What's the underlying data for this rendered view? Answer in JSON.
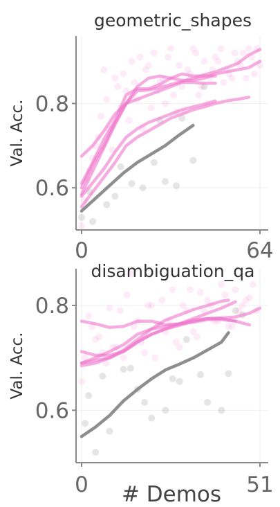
{
  "figure": {
    "xlabel": "# Demos"
  },
  "chart_data": [
    {
      "type": "line",
      "title": "geometric_shapes",
      "xlabel": "# Demos",
      "ylabel": "Val. Acc.",
      "xlim": [
        0,
        64
      ],
      "ylim": [
        0.5,
        0.96
      ],
      "xticks": [
        0,
        64
      ],
      "xtick_labels": [
        "0",
        "64"
      ],
      "yticks": [
        0.6,
        0.8
      ],
      "ytick_labels": [
        "0.6",
        "0.8"
      ],
      "grid": true,
      "colors": {
        "pink": "#ee77cc",
        "gray": "#888888"
      },
      "series": [
        {
          "color": "gray",
          "x": [
            0,
            5,
            10,
            15,
            20,
            25,
            30,
            35,
            40
          ],
          "y": [
            0.545,
            0.575,
            0.605,
            0.635,
            0.66,
            0.68,
            0.7,
            0.725,
            0.748
          ]
        },
        {
          "color": "pink",
          "x": [
            0,
            4,
            8,
            12,
            16,
            20,
            24,
            28,
            32,
            36,
            40,
            44,
            48
          ],
          "y": [
            0.675,
            0.7,
            0.735,
            0.775,
            0.8,
            0.81,
            0.82,
            0.83,
            0.84,
            0.85,
            0.85,
            0.848,
            0.848
          ]
        },
        {
          "color": "pink",
          "x": [
            0,
            4,
            8,
            12,
            16,
            20,
            24,
            28,
            32,
            36,
            40,
            44,
            48
          ],
          "y": [
            0.61,
            0.66,
            0.715,
            0.76,
            0.82,
            0.835,
            0.835,
            0.845,
            0.86,
            0.87,
            0.865,
            0.865,
            0.865
          ]
        },
        {
          "color": "pink",
          "x": [
            0,
            4,
            8,
            12,
            16,
            20,
            24,
            28,
            32,
            36,
            40,
            44,
            48,
            52,
            56,
            60,
            64
          ],
          "y": [
            0.6,
            0.655,
            0.7,
            0.755,
            0.8,
            0.83,
            0.832,
            0.838,
            0.845,
            0.852,
            0.86,
            0.868,
            0.875,
            0.885,
            0.895,
            0.915,
            0.928
          ]
        },
        {
          "color": "pink",
          "x": [
            0,
            4,
            8,
            12,
            16,
            20,
            24,
            28,
            32,
            36,
            40,
            44,
            48,
            52,
            56,
            60,
            64
          ],
          "y": [
            0.585,
            0.64,
            0.695,
            0.75,
            0.8,
            0.84,
            0.86,
            0.865,
            0.86,
            0.855,
            0.855,
            0.86,
            0.87,
            0.875,
            0.88,
            0.885,
            0.9
          ]
        },
        {
          "color": "pink",
          "x": [
            0,
            4,
            8,
            12,
            16,
            20,
            24,
            28,
            32,
            36,
            40,
            44,
            48
          ],
          "y": [
            0.58,
            0.612,
            0.645,
            0.685,
            0.72,
            0.74,
            0.755,
            0.765,
            0.775,
            0.785,
            0.792,
            0.798,
            0.806
          ]
        },
        {
          "color": "pink",
          "x": [
            0,
            4,
            8,
            12,
            16,
            20,
            24,
            28,
            32,
            36,
            40,
            44,
            48,
            52,
            56,
            60
          ],
          "y": [
            0.555,
            0.59,
            0.625,
            0.66,
            0.7,
            0.72,
            0.735,
            0.75,
            0.765,
            0.775,
            0.785,
            0.792,
            0.8,
            0.806,
            0.81,
            0.815
          ]
        }
      ],
      "scatter": [
        {
          "color": "gray",
          "x": [
            0,
            4,
            9,
            14,
            18,
            22,
            26,
            30,
            36,
            40,
            44,
            3,
            12,
            28,
            34
          ],
          "y": [
            0.53,
            0.52,
            0.56,
            0.65,
            0.61,
            0.6,
            0.66,
            0.615,
            0.765,
            0.665,
            0.84,
            0.59,
            0.58,
            0.76,
            0.605
          ]
        },
        {
          "color": "pink",
          "x": [
            0,
            2,
            4,
            6,
            8,
            10,
            12,
            14,
            16,
            18,
            20,
            22,
            24,
            26,
            28,
            30,
            32,
            34,
            36,
            38,
            40,
            42,
            44,
            46,
            48,
            50,
            52,
            54,
            56,
            58,
            60,
            62,
            64,
            1,
            3,
            5,
            7,
            9,
            11,
            13,
            15,
            17,
            19,
            21,
            23,
            25,
            27,
            29,
            31,
            33,
            35,
            37,
            39,
            41,
            43,
            45,
            47,
            49,
            51,
            53,
            55,
            57,
            59,
            61,
            63
          ],
          "y": [
            0.51,
            0.62,
            0.67,
            0.72,
            0.88,
            0.74,
            0.86,
            0.79,
            0.83,
            0.9,
            0.81,
            0.74,
            0.89,
            0.92,
            0.85,
            0.8,
            0.93,
            0.78,
            0.84,
            0.88,
            0.93,
            0.82,
            0.9,
            0.86,
            0.91,
            0.93,
            0.88,
            0.86,
            0.9,
            0.92,
            0.93,
            0.87,
            0.89,
            0.57,
            0.64,
            0.7,
            0.77,
            0.81,
            0.69,
            0.84,
            0.87,
            0.76,
            0.85,
            0.91,
            0.88,
            0.79,
            0.83,
            0.86,
            0.91,
            0.82,
            0.89,
            0.78,
            0.87,
            0.92,
            0.84,
            0.8,
            0.88,
            0.9,
            0.85,
            0.87,
            0.92,
            0.89,
            0.86,
            0.91,
            0.93
          ]
        }
      ]
    },
    {
      "type": "line",
      "title": "disambiguation_qa",
      "xlabel": "# Demos",
      "ylabel": "Val. Acc.",
      "xlim": [
        0,
        51
      ],
      "ylim": [
        0.5,
        0.87
      ],
      "xticks": [
        0,
        51
      ],
      "xtick_labels": [
        "0",
        "51"
      ],
      "yticks": [
        0.6,
        0.8
      ],
      "ytick_labels": [
        "0.6",
        "0.8"
      ],
      "grid": true,
      "colors": {
        "pink": "#ee77cc",
        "gray": "#888888"
      },
      "series": [
        {
          "color": "gray",
          "x": [
            0,
            4,
            8,
            12,
            16,
            20,
            24,
            28,
            32,
            36,
            40,
            42
          ],
          "y": [
            0.55,
            0.568,
            0.59,
            0.618,
            0.64,
            0.66,
            0.677,
            0.688,
            0.7,
            0.715,
            0.73,
            0.748
          ]
        },
        {
          "color": "pink",
          "x": [
            0,
            4,
            8,
            12,
            16,
            20,
            24,
            28,
            32,
            36,
            40,
            44
          ],
          "y": [
            0.77,
            0.765,
            0.758,
            0.76,
            0.77,
            0.77,
            0.763,
            0.765,
            0.768,
            0.773,
            0.773,
            0.77
          ]
        },
        {
          "color": "pink",
          "x": [
            0,
            4,
            8,
            12,
            16,
            20,
            24,
            28,
            32,
            36,
            40,
            44,
            48,
            51
          ],
          "y": [
            0.712,
            0.705,
            0.705,
            0.712,
            0.73,
            0.745,
            0.755,
            0.762,
            0.77,
            0.775,
            0.776,
            0.778,
            0.785,
            0.795
          ]
        },
        {
          "color": "pink",
          "x": [
            0,
            4,
            8,
            12,
            16,
            20,
            24,
            28,
            32,
            36,
            40,
            44,
            48
          ],
          "y": [
            0.69,
            0.7,
            0.712,
            0.725,
            0.745,
            0.755,
            0.76,
            0.765,
            0.772,
            0.775,
            0.775,
            0.77,
            0.763
          ]
        },
        {
          "color": "pink",
          "x": [
            0,
            4,
            8,
            12,
            16,
            20,
            24,
            28,
            32,
            36,
            40,
            44
          ],
          "y": [
            0.69,
            0.695,
            0.7,
            0.712,
            0.73,
            0.745,
            0.755,
            0.765,
            0.775,
            0.785,
            0.795,
            0.807
          ]
        },
        {
          "color": "pink",
          "x": [
            0,
            4,
            8,
            12,
            16,
            20,
            24,
            28,
            32,
            36,
            40,
            42
          ],
          "y": [
            0.685,
            0.69,
            0.7,
            0.715,
            0.735,
            0.755,
            0.772,
            0.782,
            0.792,
            0.8,
            0.808,
            0.81
          ]
        }
      ],
      "scatter": [
        {
          "color": "gray",
          "x": [
            1,
            2,
            4,
            6,
            8,
            12,
            14,
            18,
            20,
            24,
            28,
            30,
            34,
            36,
            40,
            42,
            44,
            46,
            16,
            26
          ],
          "y": [
            0.575,
            0.628,
            0.52,
            0.665,
            0.56,
            0.678,
            0.68,
            0.615,
            0.585,
            0.6,
            0.655,
            0.735,
            0.668,
            0.615,
            0.6,
            0.67,
            0.79,
            0.782,
            0.64,
            0.66
          ]
        },
        {
          "color": "pink",
          "x": [
            0,
            2,
            4,
            6,
            8,
            10,
            12,
            14,
            16,
            18,
            20,
            22,
            24,
            26,
            28,
            30,
            32,
            34,
            36,
            38,
            40,
            42,
            44,
            46,
            48,
            50,
            1,
            3,
            5,
            7,
            9,
            11,
            13,
            15,
            17,
            19,
            21,
            23,
            25,
            27,
            29,
            31,
            33,
            35,
            37,
            39,
            41,
            43,
            45,
            47,
            49
          ],
          "y": [
            0.655,
            0.78,
            0.735,
            0.71,
            0.795,
            0.72,
            0.7,
            0.86,
            0.77,
            0.71,
            0.8,
            0.765,
            0.75,
            0.83,
            0.72,
            0.79,
            0.75,
            0.825,
            0.81,
            0.77,
            0.84,
            0.76,
            0.83,
            0.8,
            0.815,
            0.79,
            0.7,
            0.76,
            0.74,
            0.69,
            0.72,
            0.79,
            0.82,
            0.76,
            0.73,
            0.8,
            0.7,
            0.81,
            0.77,
            0.73,
            0.8,
            0.83,
            0.74,
            0.79,
            0.8,
            0.77,
            0.82,
            0.76,
            0.79,
            0.81,
            0.84
          ]
        }
      ]
    }
  ]
}
